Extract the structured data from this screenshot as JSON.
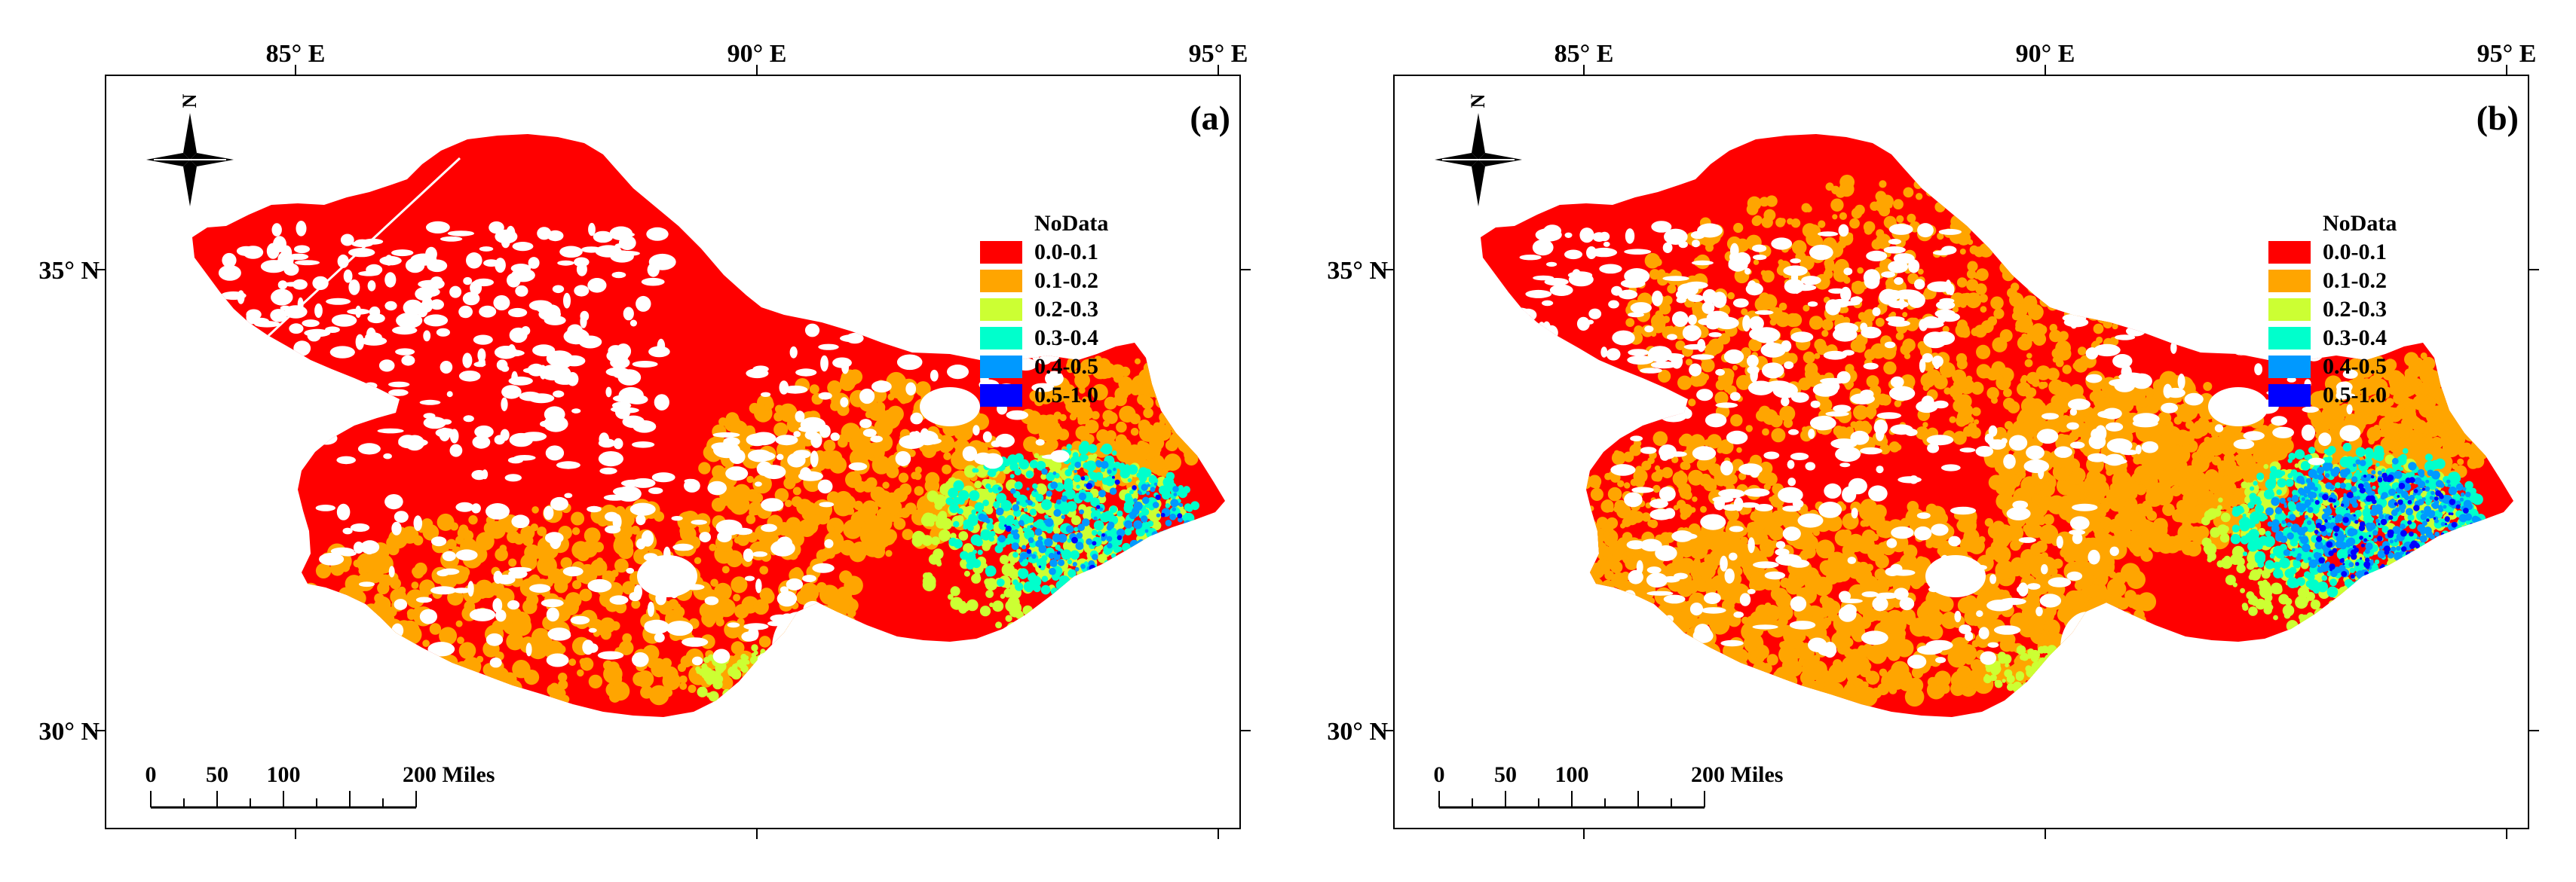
{
  "panels": [
    {
      "label": "(a)",
      "lon_ticks": [
        {
          "deg": 85,
          "label": "85° E"
        },
        {
          "deg": 90,
          "label": "90° E"
        },
        {
          "deg": 95,
          "label": "95° E"
        }
      ],
      "lat_ticks": [
        {
          "deg": 35,
          "label": "35° N"
        },
        {
          "deg": 30,
          "label": "30° N"
        }
      ],
      "north_label": "N",
      "legend": [
        {
          "label": "NoData",
          "color": "#ffffff"
        },
        {
          "label": "0.0-0.1",
          "color": "#ff0000"
        },
        {
          "label": "0.1-0.2",
          "color": "#ffa500"
        },
        {
          "label": "0.2-0.3",
          "color": "#ccff33"
        },
        {
          "label": "0.3-0.4",
          "color": "#00ffcc"
        },
        {
          "label": "0.4-0.5",
          "color": "#0099ff"
        },
        {
          "label": "0.5-1.0",
          "color": "#0000ff"
        }
      ],
      "scale_bar": {
        "labels": [
          "0",
          "50",
          "100",
          "200 Miles"
        ],
        "values": [
          0,
          50,
          100,
          200
        ]
      }
    },
    {
      "label": "(b)",
      "lon_ticks": [
        {
          "deg": 85,
          "label": "85° E"
        },
        {
          "deg": 90,
          "label": "90° E"
        },
        {
          "deg": 95,
          "label": "95° E"
        }
      ],
      "lat_ticks": [
        {
          "deg": 35,
          "label": "35° N"
        },
        {
          "deg": 30,
          "label": "30° N"
        }
      ],
      "north_label": "N",
      "legend": [
        {
          "label": "NoData",
          "color": "#ffffff"
        },
        {
          "label": "0.0-0.1",
          "color": "#ff0000"
        },
        {
          "label": "0.1-0.2",
          "color": "#ffa500"
        },
        {
          "label": "0.2-0.3",
          "color": "#ccff33"
        },
        {
          "label": "0.3-0.4",
          "color": "#00ffcc"
        },
        {
          "label": "0.4-0.5",
          "color": "#0099ff"
        },
        {
          "label": "0.5-1.0",
          "color": "#0000ff"
        }
      ],
      "scale_bar": {
        "labels": [
          "0",
          "50",
          "100",
          "200 Miles"
        ],
        "values": [
          0,
          50,
          100,
          200
        ]
      }
    }
  ]
}
